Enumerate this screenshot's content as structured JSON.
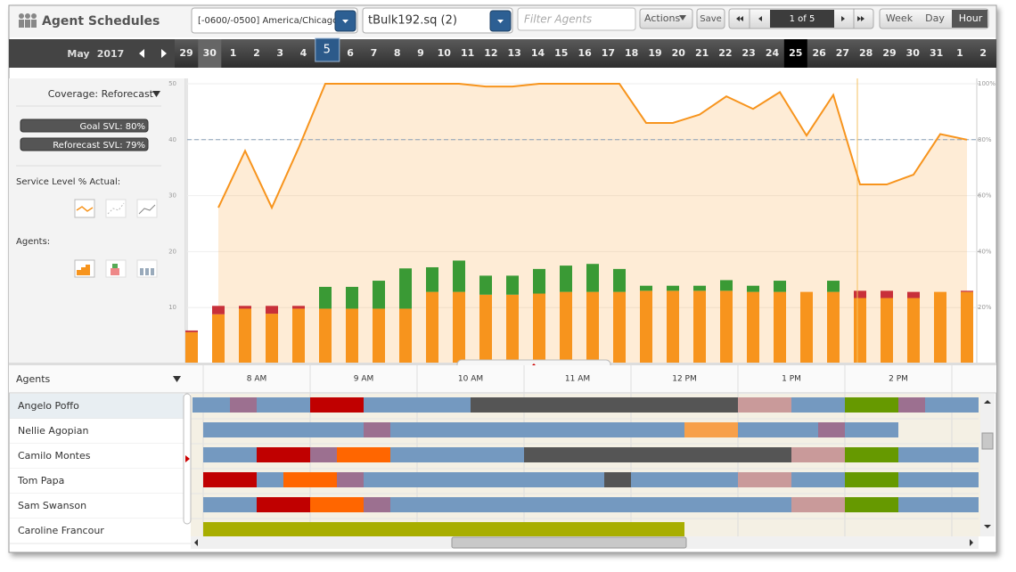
{
  "header": {
    "title": "Agent Schedules",
    "timezone": "[-0600/-0500] America/Chicago",
    "scenario": "tBulk192.sq (2)",
    "filter_placeholder": "Filter Agents",
    "actions": "Actions",
    "save": "Save",
    "pager": "1 of 5",
    "views": [
      "Week",
      "Day",
      "Hour"
    ]
  },
  "date_bar": {
    "month": "May",
    "year": "2017",
    "days": [
      "29",
      "30",
      "1",
      "2",
      "3",
      "4",
      "5",
      "6",
      "7",
      "8",
      "9",
      "10",
      "11",
      "12",
      "13",
      "14",
      "15",
      "16",
      "17",
      "18",
      "19",
      "20",
      "21",
      "22",
      "23",
      "24",
      "25",
      "26",
      "27",
      "28",
      "29",
      "30",
      "31",
      "1",
      "2"
    ],
    "selected": "25",
    "badge": "5"
  },
  "side_panel": {
    "coverage": "Coverage: Reforecast",
    "goal_svl": "Goal SVL: 80%",
    "reforecast_svl": "Reforecast SVL: 79%",
    "service_level_label": "Service Level % Actual:",
    "agents_label": "Agents:"
  },
  "chart": {
    "type": "bar",
    "ylim": [
      0,
      50
    ],
    "yticks": [
      10,
      20,
      30,
      40,
      50
    ],
    "y2lim": [
      0,
      100
    ],
    "y2ticks": [
      {
        "value": 20,
        "label": "20%"
      },
      {
        "value": 40,
        "label": "40%"
      },
      {
        "value": 60,
        "label": "60%"
      },
      {
        "value": 80,
        "label": "80%"
      },
      {
        "value": 100,
        "label": "100%"
      }
    ],
    "goal": 80,
    "series": [
      {
        "color": "#f7941d",
        "values": [
          5.6,
          8.8,
          9.8,
          8.9,
          9.8,
          9.8,
          9.8,
          9.8,
          9.8,
          12.8,
          12.8,
          12.3,
          12.3,
          12.5,
          12.8,
          12.8,
          12.8,
          13,
          13,
          13,
          13,
          12.8,
          12.8,
          12.8,
          12.8,
          11.7,
          11.7,
          11.7,
          12.8,
          12.8
        ]
      },
      {
        "color": "#3a9a35",
        "values": [
          0,
          0,
          0,
          0,
          0,
          3.9,
          3.9,
          5,
          7.2,
          4.4,
          5.6,
          3.4,
          3.4,
          4.4,
          4.7,
          5,
          4.1,
          0.9,
          0.9,
          0.9,
          1.9,
          1.1,
          2,
          0,
          2,
          0,
          0,
          0,
          0,
          0
        ]
      },
      {
        "color": "#c8303a",
        "values": [
          0.3,
          1.5,
          0.5,
          1.4,
          0.5,
          0,
          0,
          0,
          0,
          0,
          0,
          0,
          0,
          0,
          0,
          0,
          0,
          0,
          0,
          0,
          0,
          0,
          0,
          0,
          0,
          1.3,
          1.3,
          1.1,
          0,
          0.2
        ]
      },
      {
        "type": "line",
        "axis": "y2",
        "color": "#f7941d",
        "values": [
          null,
          55.7,
          76,
          55.7,
          77,
          100,
          100,
          100,
          100,
          100,
          100,
          99,
          99,
          100,
          100,
          100,
          100,
          86,
          86,
          89,
          95.5,
          91,
          97,
          81.5,
          96,
          64,
          64,
          67.5,
          82,
          80
        ]
      }
    ]
  },
  "schedule": {
    "header": "Agents",
    "times": [
      "8 AM",
      "9 AM",
      "10 AM",
      "11 AM",
      "12 PM",
      "1 PM",
      "2 PM"
    ],
    "agents": [
      "Angelo Poffo",
      "Nellie Agopian",
      "Camilo Montes",
      "Tom Papa",
      "Sam Swanson",
      "Caroline Francour"
    ]
  }
}
